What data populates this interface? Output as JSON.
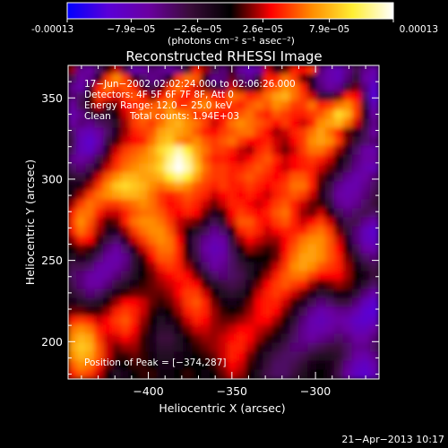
{
  "colorbar": {
    "ticks": [
      "-0.00013",
      "−7.9e−05",
      "−2.6e−05",
      "2.6e−05",
      "7.9e−05",
      "0.00013"
    ],
    "tick_values": [
      -0.00013,
      -7.9e-05,
      -2.6e-05,
      2.6e-05,
      7.9e-05,
      0.00013
    ],
    "unit": "(photons cm⁻² s⁻¹ asec⁻²)",
    "colors": [
      "#0000ff",
      "#5a00d8",
      "#6a00a0",
      "#3a0c3a",
      "#000000",
      "#ff0000",
      "#ff8c00",
      "#ffee33",
      "#ffffff"
    ]
  },
  "chart_data": {
    "type": "heatmap",
    "title": "Reconstructed RHESSI Image",
    "xlabel": "Heliocentric X (arcsec)",
    "ylabel": "Heliocentric Y (arcsec)",
    "xlim": [
      -448,
      -262
    ],
    "ylim": [
      177,
      370
    ],
    "xticks": [
      -400,
      -350,
      -300
    ],
    "xtick_labels": [
      "−400",
      "−350",
      "−300"
    ],
    "yticks": [
      200,
      250,
      300,
      350
    ],
    "ytick_labels": [
      "200",
      "250",
      "300",
      "350"
    ],
    "peak": [
      -374,
      287
    ],
    "annotations": [
      "17−Jun−2002 02:02:24.000 to 02:06:26.000",
      "Detectors: 4F 5F 6F 7F 8F, Att 0",
      "Energy Range: 12.0 − 25.0 keV",
      "Clean",
      "Total counts: 1.94E+03",
      "Position of Peak = [−374,287]"
    ],
    "intensity_grid_rows_top_to_bottom": [
      [
        0.15,
        -0.45,
        -0.5,
        -0.35,
        0.05,
        0.2,
        -0.3,
        -0.55,
        -0.5,
        -0.4,
        -0.45,
        -0.5,
        -0.4,
        -0.2,
        0.3,
        0.15,
        -0.3,
        -0.4,
        0.05,
        -0.5,
        -0.6,
        -0.5,
        0.2,
        -0.1,
        0.1,
        0.3,
        0.25,
        0.35,
        -0.4,
        -0.55,
        -0.6,
        -0.45,
        -0.3,
        -0.45,
        -0.55
      ],
      [
        -0.3,
        -0.5,
        -0.45,
        -0.1,
        0.35,
        0.5,
        0.35,
        0.05,
        -0.35,
        -0.45,
        -0.4,
        0.0,
        0.35,
        0.45,
        0.4,
        -0.1,
        -0.45,
        -0.4,
        0.1,
        -0.35,
        -0.45,
        -0.2,
        0.3,
        0.3,
        0.45,
        0.35,
        0.1,
        -0.1,
        -0.45,
        -0.55,
        -0.6,
        -0.4,
        -0.2,
        -0.5,
        -0.6
      ],
      [
        -0.45,
        -0.55,
        -0.2,
        0.3,
        0.45,
        0.35,
        0.4,
        0.3,
        -0.1,
        -0.3,
        0.05,
        0.35,
        0.45,
        0.35,
        0.2,
        0.1,
        -0.2,
        -0.3,
        0.2,
        0.1,
        -0.2,
        0.05,
        0.35,
        0.4,
        0.5,
        0.45,
        0.3,
        -0.1,
        -0.4,
        -0.5,
        -0.45,
        -0.2,
        0.1,
        -0.4,
        -0.7
      ],
      [
        -0.4,
        -0.35,
        0.0,
        0.35,
        0.3,
        0.2,
        0.35,
        0.4,
        0.3,
        0.1,
        0.25,
        0.4,
        0.35,
        0.25,
        0.35,
        0.4,
        0.3,
        0.25,
        0.45,
        0.4,
        0.3,
        0.35,
        0.45,
        0.55,
        0.6,
        0.45,
        0.35,
        0.2,
        -0.2,
        -0.2,
        0.1,
        0.3,
        0.25,
        -0.35,
        -0.75
      ],
      [
        -0.5,
        -0.3,
        0.05,
        0.2,
        0.05,
        0.1,
        0.25,
        0.3,
        0.35,
        0.4,
        0.45,
        0.5,
        0.3,
        0.35,
        0.45,
        0.5,
        0.4,
        0.35,
        0.35,
        0.3,
        0.4,
        0.45,
        0.4,
        0.5,
        0.45,
        0.35,
        0.35,
        0.45,
        0.3,
        0.35,
        0.45,
        0.5,
        0.35,
        -0.2,
        -0.6
      ],
      [
        -0.55,
        -0.45,
        -0.2,
        -0.1,
        -0.2,
        0.0,
        0.2,
        0.35,
        0.45,
        0.45,
        0.4,
        0.55,
        0.5,
        0.45,
        0.3,
        0.35,
        0.3,
        0.25,
        0.3,
        0.4,
        0.45,
        0.35,
        0.3,
        0.4,
        0.35,
        0.3,
        0.3,
        0.35,
        0.4,
        0.5,
        0.7,
        0.6,
        0.35,
        -0.1,
        -0.5
      ],
      [
        -0.5,
        -0.4,
        -0.45,
        -0.35,
        -0.3,
        -0.15,
        0.15,
        0.35,
        0.4,
        0.35,
        0.45,
        0.55,
        0.6,
        0.5,
        0.45,
        0.35,
        0.2,
        0.3,
        0.45,
        0.5,
        0.45,
        0.4,
        0.35,
        0.25,
        0.35,
        0.25,
        0.2,
        0.3,
        0.5,
        0.55,
        0.6,
        0.45,
        0.2,
        -0.2,
        -0.45
      ],
      [
        -0.35,
        -0.55,
        -0.6,
        -0.5,
        -0.35,
        -0.1,
        0.15,
        0.3,
        0.35,
        0.4,
        0.55,
        0.6,
        0.55,
        0.5,
        0.4,
        0.3,
        0.25,
        0.35,
        0.4,
        0.45,
        0.45,
        0.35,
        0.25,
        0.15,
        0.2,
        0.3,
        0.35,
        0.45,
        0.55,
        0.45,
        0.3,
        0.1,
        -0.1,
        -0.3,
        -0.5
      ],
      [
        -0.3,
        -0.6,
        -0.7,
        -0.55,
        -0.25,
        0.05,
        0.2,
        0.25,
        0.3,
        0.45,
        0.6,
        0.65,
        0.5,
        0.45,
        0.5,
        0.4,
        0.35,
        0.4,
        0.45,
        0.35,
        0.25,
        0.25,
        0.3,
        0.2,
        0.15,
        0.25,
        0.35,
        0.5,
        0.55,
        0.5,
        0.35,
        0.1,
        -0.2,
        -0.35,
        -0.4
      ],
      [
        -0.35,
        -0.6,
        -0.65,
        -0.45,
        -0.1,
        0.2,
        0.35,
        0.4,
        0.45,
        0.55,
        0.7,
        0.8,
        0.9,
        0.75,
        0.55,
        0.45,
        0.35,
        0.35,
        0.3,
        0.2,
        0.15,
        0.3,
        0.35,
        0.2,
        0.1,
        0.2,
        0.35,
        0.45,
        0.45,
        0.35,
        0.15,
        -0.1,
        -0.35,
        -0.5,
        -0.55
      ],
      [
        -0.45,
        -0.5,
        -0.45,
        -0.25,
        0.1,
        0.3,
        0.4,
        0.45,
        0.5,
        0.55,
        0.65,
        0.85,
        0.97,
        0.85,
        0.6,
        0.4,
        0.3,
        0.3,
        0.25,
        0.2,
        0.25,
        0.35,
        0.4,
        0.3,
        0.2,
        0.25,
        0.3,
        0.35,
        0.3,
        0.2,
        0.0,
        -0.2,
        -0.4,
        -0.5,
        -0.5
      ],
      [
        -0.35,
        -0.4,
        -0.3,
        -0.1,
        0.2,
        0.35,
        0.45,
        0.5,
        0.55,
        0.6,
        0.7,
        0.9,
        1.0,
        0.9,
        0.65,
        0.45,
        0.35,
        0.35,
        0.3,
        0.3,
        0.35,
        0.4,
        0.35,
        0.25,
        0.2,
        0.25,
        0.3,
        0.3,
        0.2,
        0.1,
        -0.1,
        -0.3,
        -0.45,
        -0.55,
        -0.6
      ],
      [
        -0.2,
        -0.25,
        -0.1,
        0.2,
        0.4,
        0.5,
        0.6,
        0.6,
        0.55,
        0.55,
        0.6,
        0.75,
        0.85,
        0.75,
        0.55,
        0.4,
        0.35,
        0.35,
        0.3,
        0.35,
        0.4,
        0.35,
        0.3,
        0.25,
        0.3,
        0.4,
        0.4,
        0.3,
        0.1,
        -0.1,
        -0.3,
        -0.45,
        -0.55,
        -0.5,
        -0.4
      ],
      [
        -0.1,
        -0.05,
        0.15,
        0.35,
        0.5,
        0.65,
        0.7,
        0.65,
        0.6,
        0.5,
        0.45,
        0.5,
        0.55,
        0.5,
        0.4,
        0.35,
        0.3,
        0.35,
        0.3,
        0.3,
        0.35,
        0.3,
        0.25,
        0.3,
        0.35,
        0.45,
        0.45,
        0.3,
        0.05,
        -0.25,
        -0.45,
        -0.55,
        -0.55,
        -0.45,
        -0.35
      ],
      [
        -0.05,
        0.15,
        0.35,
        0.45,
        0.5,
        0.55,
        0.6,
        0.6,
        0.55,
        0.45,
        0.35,
        0.3,
        0.35,
        0.4,
        0.35,
        0.3,
        0.2,
        0.25,
        0.3,
        0.25,
        0.3,
        0.25,
        0.2,
        0.3,
        0.35,
        0.4,
        0.35,
        0.2,
        -0.05,
        -0.3,
        -0.5,
        -0.55,
        -0.5,
        -0.4,
        -0.3
      ],
      [
        0.15,
        0.35,
        0.45,
        0.4,
        0.35,
        0.35,
        0.4,
        0.45,
        0.5,
        0.45,
        0.35,
        0.25,
        0.3,
        0.35,
        0.3,
        0.2,
        0.1,
        0.2,
        0.3,
        0.3,
        0.25,
        0.2,
        0.25,
        0.35,
        0.4,
        0.3,
        0.2,
        0.1,
        0.05,
        -0.2,
        -0.45,
        -0.5,
        -0.45,
        -0.35,
        -0.25
      ],
      [
        0.3,
        0.45,
        0.45,
        0.3,
        0.2,
        0.2,
        0.3,
        0.4,
        0.45,
        0.45,
        0.4,
        0.3,
        0.25,
        0.3,
        0.25,
        0.1,
        -0.1,
        0.05,
        0.25,
        0.35,
        0.3,
        0.25,
        0.3,
        0.4,
        0.45,
        0.3,
        0.15,
        0.1,
        0.2,
        0.0,
        -0.3,
        -0.4,
        -0.35,
        -0.3,
        -0.35
      ],
      [
        0.35,
        0.5,
        0.4,
        0.2,
        0.05,
        0.1,
        0.3,
        0.45,
        0.5,
        0.5,
        0.45,
        0.35,
        0.2,
        0.15,
        0.1,
        -0.1,
        -0.3,
        -0.15,
        0.2,
        0.4,
        0.4,
        0.3,
        0.25,
        0.35,
        0.4,
        0.3,
        0.2,
        0.25,
        0.35,
        0.2,
        -0.1,
        -0.3,
        -0.3,
        -0.45,
        -0.55
      ],
      [
        0.3,
        0.45,
        0.35,
        0.15,
        -0.1,
        -0.1,
        0.15,
        0.35,
        0.45,
        0.5,
        0.5,
        0.4,
        0.2,
        0.0,
        -0.15,
        -0.3,
        -0.45,
        -0.35,
        0.0,
        0.3,
        0.35,
        0.3,
        0.2,
        0.25,
        0.3,
        0.3,
        0.3,
        0.4,
        0.45,
        0.35,
        0.1,
        -0.2,
        -0.4,
        -0.6,
        -0.7
      ],
      [
        0.15,
        0.3,
        0.25,
        0.05,
        -0.25,
        -0.35,
        -0.1,
        0.2,
        0.35,
        0.45,
        0.5,
        0.45,
        0.25,
        -0.05,
        -0.3,
        -0.45,
        -0.55,
        -0.5,
        -0.2,
        0.15,
        0.25,
        0.2,
        0.15,
        0.15,
        0.25,
        0.35,
        0.45,
        0.5,
        0.5,
        0.4,
        0.2,
        -0.1,
        -0.4,
        -0.6,
        -0.65
      ],
      [
        0.0,
        0.1,
        0.05,
        -0.15,
        -0.4,
        -0.5,
        -0.35,
        -0.05,
        0.2,
        0.35,
        0.45,
        0.45,
        0.3,
        0.0,
        -0.3,
        -0.5,
        -0.6,
        -0.55,
        -0.3,
        0.0,
        0.15,
        0.1,
        0.05,
        0.1,
        0.25,
        0.4,
        0.5,
        0.55,
        0.5,
        0.4,
        0.25,
        0.0,
        -0.3,
        -0.5,
        -0.55
      ],
      [
        -0.15,
        -0.1,
        -0.15,
        -0.35,
        -0.5,
        -0.55,
        -0.45,
        -0.2,
        0.05,
        0.25,
        0.4,
        0.4,
        0.3,
        0.05,
        -0.25,
        -0.45,
        -0.55,
        -0.5,
        -0.35,
        -0.15,
        0.0,
        0.0,
        0.0,
        0.1,
        0.3,
        0.45,
        0.55,
        0.55,
        0.5,
        0.4,
        0.3,
        0.1,
        -0.15,
        -0.35,
        -0.4
      ],
      [
        -0.3,
        -0.3,
        -0.35,
        -0.5,
        -0.55,
        -0.5,
        -0.4,
        -0.2,
        0.0,
        0.15,
        0.3,
        0.35,
        0.3,
        0.15,
        -0.1,
        -0.35,
        -0.5,
        -0.45,
        -0.35,
        -0.25,
        -0.15,
        -0.05,
        0.05,
        0.2,
        0.35,
        0.5,
        0.55,
        0.5,
        0.4,
        0.35,
        0.3,
        0.15,
        -0.05,
        -0.2,
        -0.3
      ],
      [
        -0.35,
        -0.4,
        -0.5,
        -0.55,
        -0.5,
        -0.4,
        -0.3,
        -0.15,
        0.0,
        0.1,
        0.2,
        0.25,
        0.3,
        0.25,
        0.1,
        -0.15,
        -0.35,
        -0.4,
        -0.35,
        -0.3,
        -0.15,
        0.0,
        0.15,
        0.3,
        0.4,
        0.45,
        0.45,
        0.35,
        0.25,
        0.25,
        0.25,
        0.15,
        0.0,
        -0.1,
        -0.25
      ],
      [
        -0.3,
        -0.4,
        -0.5,
        -0.5,
        -0.4,
        -0.25,
        -0.15,
        -0.05,
        0.05,
        0.1,
        0.15,
        0.2,
        0.25,
        0.3,
        0.25,
        0.05,
        -0.15,
        -0.25,
        -0.3,
        -0.25,
        -0.1,
        0.1,
        0.25,
        0.35,
        0.4,
        0.35,
        0.3,
        0.15,
        0.05,
        0.1,
        0.15,
        0.1,
        -0.05,
        -0.2,
        -0.35
      ],
      [
        -0.2,
        -0.3,
        -0.4,
        -0.35,
        -0.2,
        -0.05,
        0.05,
        0.1,
        0.1,
        0.1,
        0.1,
        0.15,
        0.25,
        0.35,
        0.35,
        0.2,
        0.0,
        -0.15,
        -0.2,
        -0.15,
        0.0,
        0.2,
        0.3,
        0.35,
        0.3,
        0.2,
        0.1,
        -0.05,
        -0.2,
        -0.15,
        -0.05,
        -0.05,
        -0.2,
        -0.4,
        -0.55
      ],
      [
        -0.1,
        -0.15,
        -0.2,
        -0.15,
        0.0,
        0.15,
        0.25,
        0.25,
        0.2,
        0.1,
        0.05,
        0.1,
        0.2,
        0.35,
        0.4,
        0.3,
        0.1,
        -0.05,
        -0.1,
        -0.05,
        0.1,
        0.25,
        0.3,
        0.3,
        0.2,
        0.05,
        -0.1,
        -0.3,
        -0.4,
        -0.35,
        -0.25,
        -0.25,
        -0.4,
        -0.6,
        -0.7
      ],
      [
        0.1,
        0.1,
        0.05,
        0.05,
        0.15,
        0.3,
        0.35,
        0.3,
        0.2,
        0.05,
        -0.05,
        0.0,
        0.15,
        0.3,
        0.35,
        0.3,
        0.15,
        0.05,
        0.0,
        0.05,
        0.15,
        0.25,
        0.3,
        0.25,
        0.1,
        -0.1,
        -0.3,
        -0.45,
        -0.55,
        -0.5,
        -0.45,
        -0.45,
        -0.55,
        -0.7,
        -0.75
      ],
      [
        0.3,
        0.35,
        0.3,
        0.2,
        0.25,
        0.35,
        0.4,
        0.3,
        0.15,
        0.0,
        -0.15,
        -0.1,
        0.05,
        0.2,
        0.3,
        0.25,
        0.15,
        0.1,
        0.1,
        0.15,
        0.2,
        0.25,
        0.25,
        0.15,
        0.0,
        -0.2,
        -0.4,
        -0.55,
        -0.6,
        -0.55,
        -0.5,
        -0.55,
        -0.65,
        -0.7,
        -0.65
      ],
      [
        0.45,
        0.5,
        0.45,
        0.3,
        0.25,
        0.3,
        0.35,
        0.25,
        0.1,
        -0.05,
        -0.2,
        -0.2,
        -0.05,
        0.1,
        0.2,
        0.2,
        0.15,
        0.15,
        0.2,
        0.25,
        0.25,
        0.2,
        0.15,
        0.05,
        -0.1,
        -0.3,
        -0.45,
        -0.55,
        -0.55,
        -0.5,
        -0.45,
        -0.5,
        -0.6,
        -0.6,
        -0.5
      ],
      [
        0.5,
        0.6,
        0.55,
        0.35,
        0.2,
        0.2,
        0.25,
        0.2,
        0.05,
        -0.1,
        -0.25,
        -0.25,
        -0.15,
        0.0,
        0.1,
        0.15,
        0.15,
        0.2,
        0.25,
        0.3,
        0.25,
        0.15,
        0.05,
        -0.05,
        -0.2,
        -0.35,
        -0.45,
        -0.5,
        -0.45,
        -0.4,
        -0.35,
        -0.4,
        -0.5,
        -0.5,
        -0.4
      ],
      [
        0.55,
        0.65,
        0.6,
        0.4,
        0.2,
        0.1,
        0.15,
        0.15,
        0.05,
        -0.1,
        -0.2,
        -0.2,
        -0.15,
        -0.05,
        0.05,
        0.1,
        0.15,
        0.2,
        0.3,
        0.3,
        0.2,
        0.05,
        -0.1,
        -0.2,
        -0.3,
        -0.4,
        -0.4,
        -0.35,
        -0.3,
        -0.25,
        -0.25,
        -0.35,
        -0.45,
        -0.45,
        -0.35
      ],
      [
        0.5,
        0.6,
        0.55,
        0.4,
        0.2,
        0.05,
        0.05,
        0.1,
        0.05,
        -0.05,
        -0.15,
        -0.15,
        -0.1,
        -0.05,
        0.0,
        0.05,
        0.1,
        0.2,
        0.3,
        0.25,
        0.1,
        -0.05,
        -0.2,
        -0.3,
        -0.35,
        -0.35,
        -0.3,
        -0.2,
        -0.15,
        -0.15,
        -0.2,
        -0.35,
        -0.5,
        -0.55,
        -0.45
      ],
      [
        0.4,
        0.5,
        0.45,
        0.3,
        0.1,
        -0.05,
        0.0,
        0.05,
        0.05,
        0.0,
        -0.1,
        -0.1,
        -0.05,
        0.0,
        0.0,
        0.0,
        0.05,
        0.15,
        0.25,
        0.2,
        0.05,
        -0.1,
        -0.25,
        -0.35,
        -0.35,
        -0.3,
        -0.2,
        -0.1,
        -0.05,
        -0.1,
        -0.25,
        -0.45,
        -0.6,
        -0.65,
        -0.55
      ],
      [
        0.3,
        0.4,
        0.35,
        0.2,
        0.0,
        -0.15,
        -0.1,
        0.0,
        0.05,
        0.05,
        -0.05,
        -0.05,
        0.0,
        0.05,
        0.0,
        -0.05,
        0.0,
        0.1,
        0.2,
        0.15,
        0.0,
        -0.15,
        -0.3,
        -0.35,
        -0.35,
        -0.25,
        -0.15,
        -0.05,
        0.0,
        -0.1,
        -0.3,
        -0.5,
        -0.65,
        -0.7,
        -0.6
      ]
    ]
  },
  "footer": {
    "timestamp": "21−Apr−2013 10:17"
  }
}
